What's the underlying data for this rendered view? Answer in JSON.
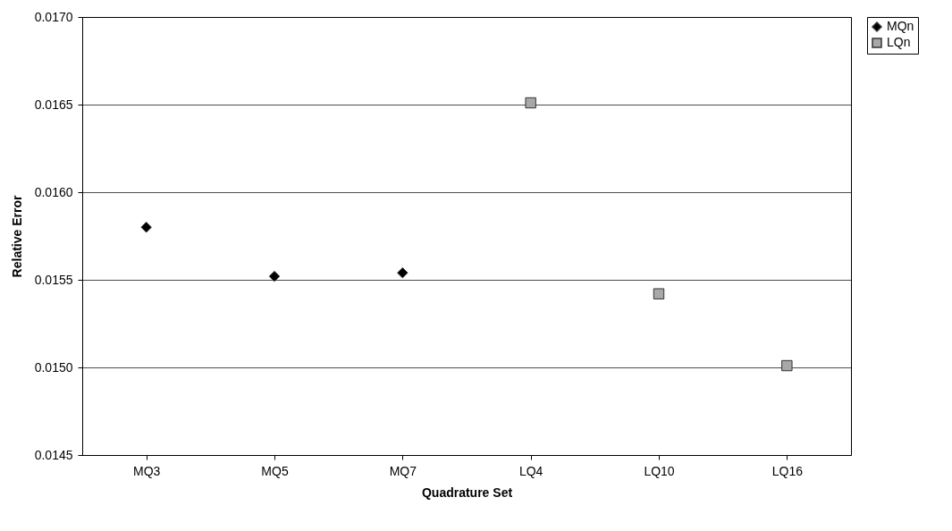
{
  "chart_data": {
    "type": "scatter",
    "xlabel": "Quadrature Set",
    "ylabel": "Relative Error",
    "categories": [
      "MQ3",
      "MQ5",
      "MQ7",
      "LQ4",
      "LQ10",
      "LQ16"
    ],
    "series": [
      {
        "name": "MQn",
        "color": "#000000",
        "marker": "diamond",
        "values": [
          0.0158,
          0.01552,
          0.01554,
          null,
          null,
          null
        ]
      },
      {
        "name": "LQn",
        "color": "#a8a8a8",
        "marker": "square",
        "values": [
          null,
          null,
          null,
          0.01651,
          0.01542,
          0.01501
        ]
      }
    ],
    "ylim": [
      0.0145,
      0.017
    ],
    "yticks": [
      {
        "value": 0.0145,
        "label": "0.0145"
      },
      {
        "value": 0.015,
        "label": "0.0150"
      },
      {
        "value": 0.0155,
        "label": "0.0155"
      },
      {
        "value": 0.016,
        "label": "0.0160"
      },
      {
        "value": 0.0165,
        "label": "0.0165"
      },
      {
        "value": 0.017,
        "label": "0.0170"
      }
    ],
    "grid": "y",
    "legend": "right"
  }
}
